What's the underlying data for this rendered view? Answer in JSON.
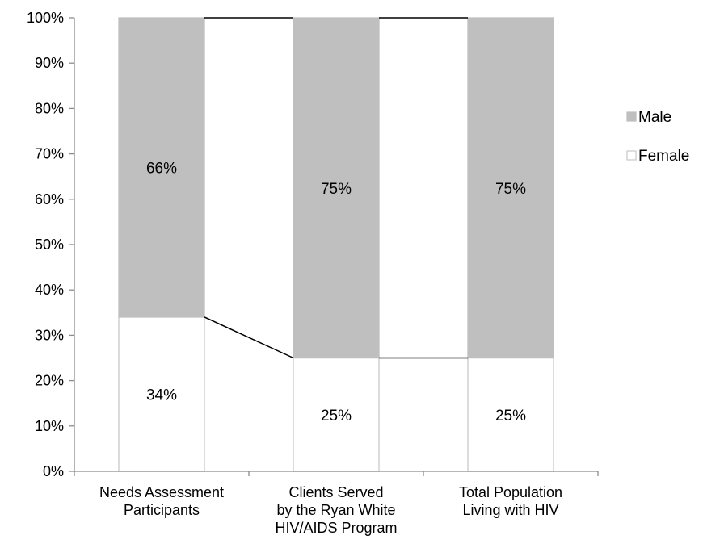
{
  "chart_data": {
    "type": "bar",
    "stacked": true,
    "percent_stacked": true,
    "categories": [
      [
        "Needs Assessment",
        "Participants"
      ],
      [
        "Clients Served",
        "by the Ryan White",
        "HIV/AIDS Program"
      ],
      [
        "Total Population",
        "Living with HIV"
      ]
    ],
    "series": [
      {
        "name": "Female",
        "values": [
          34,
          25,
          25
        ],
        "labels": [
          "34%",
          "25%",
          "25%"
        ],
        "color": "#ffffff",
        "stroke": "#c8c8c8"
      },
      {
        "name": "Male",
        "values": [
          66,
          75,
          75
        ],
        "labels": [
          "66%",
          "75%",
          "75%"
        ],
        "color": "#bfbfbf",
        "stroke": "#bfbfbf"
      }
    ],
    "series_lines": true,
    "y_ticks": [
      "0%",
      "10%",
      "20%",
      "30%",
      "40%",
      "50%",
      "60%",
      "70%",
      "80%",
      "90%",
      "100%"
    ],
    "ylim": [
      0,
      100
    ],
    "grid": false,
    "legend": {
      "position": "right",
      "entries": [
        "Male",
        "Female"
      ]
    },
    "title": "",
    "xlabel": "",
    "ylabel": ""
  }
}
